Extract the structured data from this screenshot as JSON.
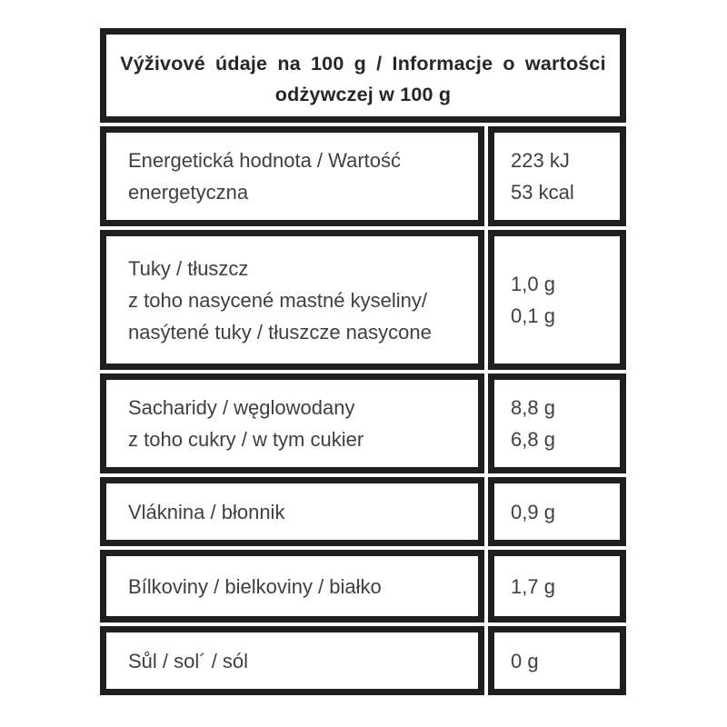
{
  "theme": {
    "border": "#1f1f1f",
    "text": "#3f3f3f",
    "header_text": "#262626",
    "bg": "#ffffff"
  },
  "table": {
    "header": {
      "line1": "Výživové údaje na 100 g / Informacje o wartości",
      "line2": "odżywczej w 100 g"
    },
    "rows": [
      {
        "label_lines": [
          "Energetická hodnota / Wartość",
          "energetyczna"
        ],
        "value_lines": [
          "223 kJ",
          "53 kcal"
        ]
      },
      {
        "label_lines": [
          "Tuky / tłuszcz",
          "z toho nasycené mastné kyseliny/",
          "nasýtené tuky / tłuszcze nasycone"
        ],
        "value_lines": [
          "1,0 g",
          "0,1 g"
        ]
      },
      {
        "label_lines": [
          "Sacharidy / węglowodany",
          "z toho cukry / w tym cukier"
        ],
        "value_lines": [
          "8,8 g",
          "6,8 g"
        ]
      },
      {
        "label_lines": [
          "Vláknina / błonnik"
        ],
        "value_lines": [
          "0,9 g"
        ]
      },
      {
        "label_lines": [
          "Bílkoviny / bielkoviny / białko"
        ],
        "value_lines": [
          "1,7 g"
        ]
      },
      {
        "label_lines": [
          "Sůl / sol´ / sól"
        ],
        "value_lines": [
          "0 g"
        ]
      }
    ]
  }
}
